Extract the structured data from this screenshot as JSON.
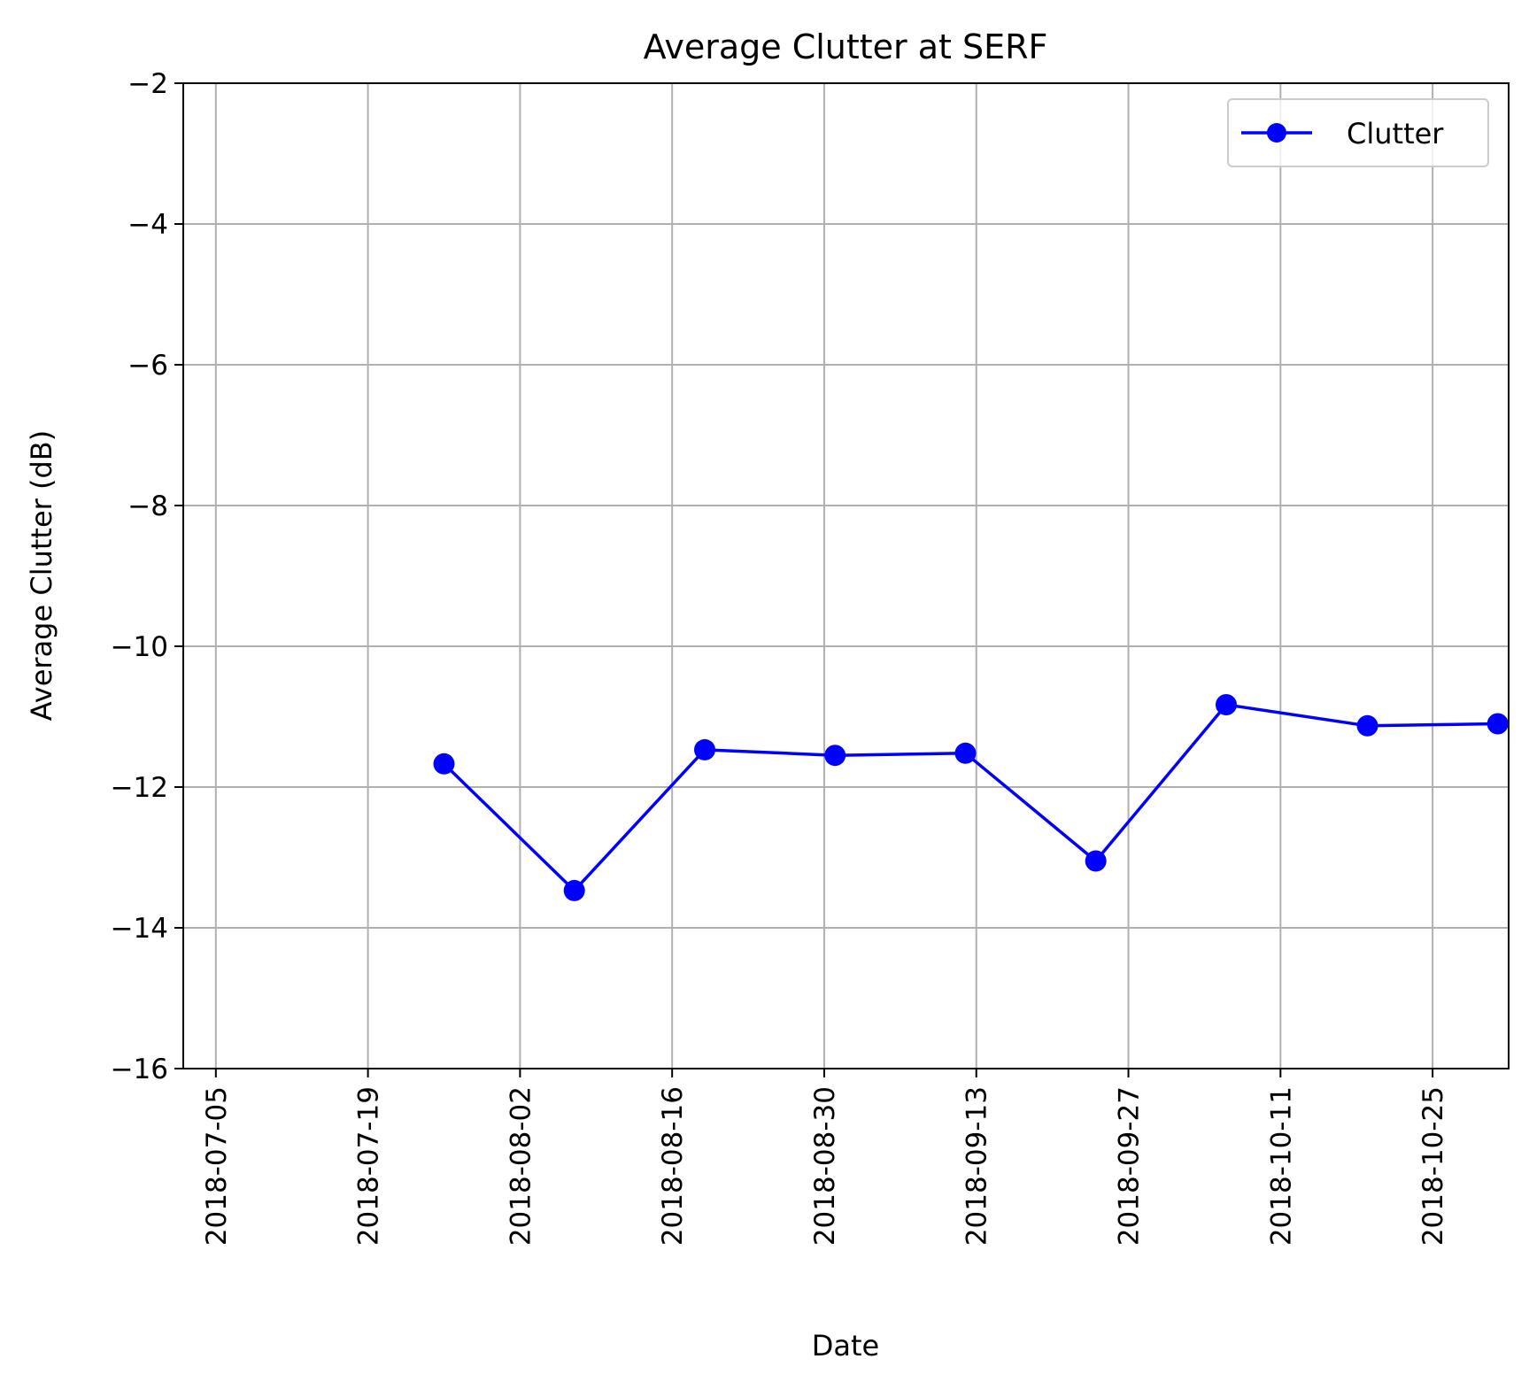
{
  "chart_data": {
    "type": "line",
    "title": "Average Clutter at SERF",
    "xlabel": "Date",
    "ylabel": "Average Clutter (dB)",
    "x_type": "date",
    "xlim": [
      "2018-07-02",
      "2018-11-01"
    ],
    "ylim": [
      -16,
      -2
    ],
    "x_ticks": [
      "2018-07-05",
      "2018-07-19",
      "2018-08-02",
      "2018-08-16",
      "2018-08-30",
      "2018-09-13",
      "2018-09-27",
      "2018-10-11",
      "2018-10-25"
    ],
    "y_ticks": [
      -16,
      -14,
      -12,
      -10,
      -8,
      -6,
      -4,
      -2
    ],
    "y_tick_labels": [
      "−16",
      "−14",
      "−12",
      "−10",
      "−8",
      "−6",
      "−4",
      "−2"
    ],
    "grid": true,
    "legend_position": "top-right",
    "series": [
      {
        "name": "Clutter",
        "color": "#0000ff",
        "marker": "circle",
        "x": [
          "2018-07-26",
          "2018-08-07",
          "2018-08-19",
          "2018-08-31",
          "2018-09-12",
          "2018-09-24",
          "2018-10-06",
          "2018-10-19",
          "2018-10-31"
        ],
        "y": [
          -11.67,
          -13.47,
          -11.47,
          -11.55,
          -11.52,
          -13.05,
          -10.83,
          -11.13,
          -11.1
        ]
      }
    ]
  }
}
